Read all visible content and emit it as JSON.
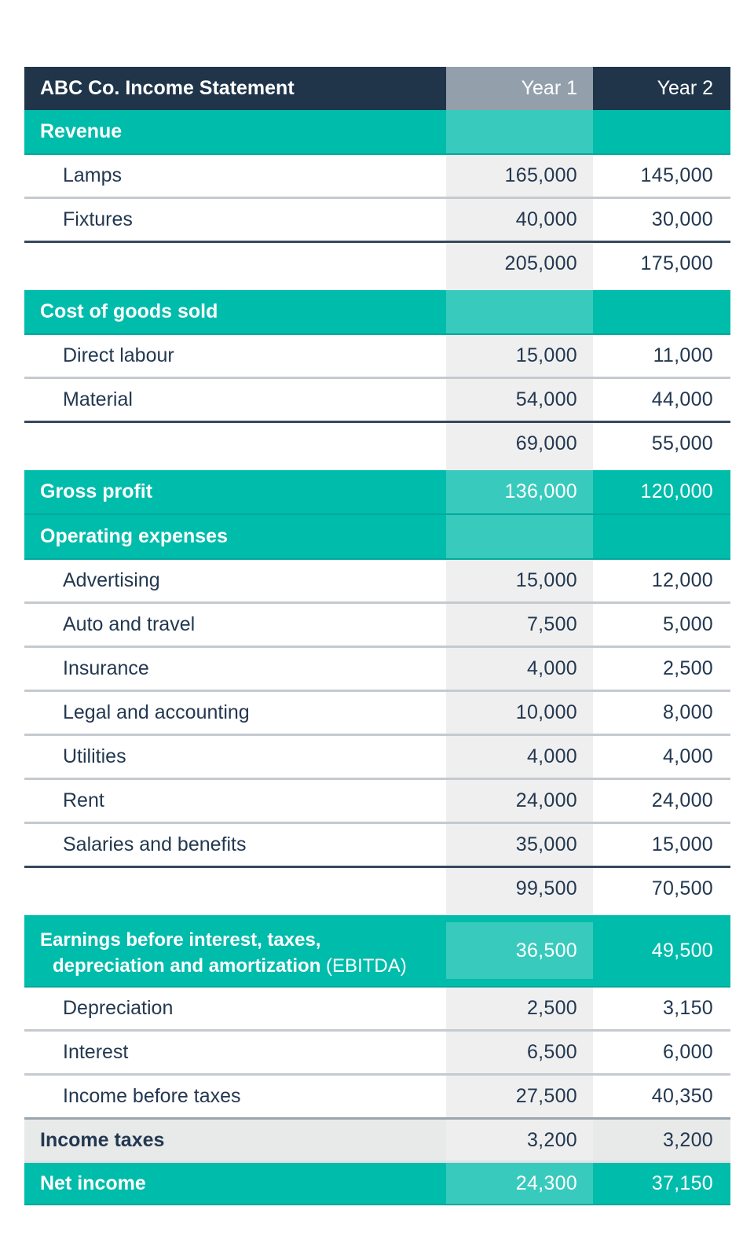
{
  "title": "ABC Co. Income Statement",
  "columns": {
    "year1": "Year 1",
    "year2": "Year 2"
  },
  "colors": {
    "navy": "#20354a",
    "teal": "#00bcab",
    "teal_light": "#38cbbd",
    "teal_edge": "#00a99b",
    "gray_header": "#93a0ac",
    "column_gray": "#efefef",
    "tax_row_bg": "#e8e9e9",
    "tax_col_bg": "#eeeeee",
    "text_dark": "#233850",
    "rule_thin": "#c5cad0",
    "rule_heavy": "#35495d",
    "rule_gray": "#9aa5ae",
    "rule_light": "#dfe2e4"
  },
  "rows": [
    {
      "type": "section",
      "label": "Revenue"
    },
    {
      "type": "detail",
      "label": "Lamps",
      "y1": "165,000",
      "y2": "145,000"
    },
    {
      "type": "detail",
      "label": "Fixtures",
      "y1": "40,000",
      "y2": "30,000",
      "rule": "thin"
    },
    {
      "type": "subtotal",
      "label": "",
      "y1": "205,000",
      "y2": "175,000",
      "rule": "heavy"
    },
    {
      "type": "gap"
    },
    {
      "type": "section",
      "label": "Cost of goods sold"
    },
    {
      "type": "detail",
      "label": "Direct labour",
      "y1": "15,000",
      "y2": "11,000"
    },
    {
      "type": "detail",
      "label": "Material",
      "y1": "54,000",
      "y2": "44,000",
      "rule": "thin"
    },
    {
      "type": "subtotal",
      "label": "",
      "y1": "69,000",
      "y2": "55,000",
      "rule": "heavy"
    },
    {
      "type": "gap"
    },
    {
      "type": "section_values",
      "label": "Gross profit",
      "y1": "136,000",
      "y2": "120,000"
    },
    {
      "type": "section",
      "label": "Operating expenses"
    },
    {
      "type": "detail",
      "label": "Advertising",
      "y1": "15,000",
      "y2": "12,000"
    },
    {
      "type": "detail",
      "label": "Auto and travel",
      "y1": "7,500",
      "y2": "5,000",
      "rule": "thin"
    },
    {
      "type": "detail",
      "label": "Insurance",
      "y1": "4,000",
      "y2": "2,500",
      "rule": "thin"
    },
    {
      "type": "detail",
      "label": "Legal and accounting",
      "y1": "10,000",
      "y2": "8,000",
      "rule": "thin"
    },
    {
      "type": "detail",
      "label": "Utilities",
      "y1": "4,000",
      "y2": "4,000",
      "rule": "thin"
    },
    {
      "type": "detail",
      "label": "Rent",
      "y1": "24,000",
      "y2": "24,000",
      "rule": "thin"
    },
    {
      "type": "detail",
      "label": "Salaries and benefits",
      "y1": "35,000",
      "y2": "15,000",
      "rule": "thin"
    },
    {
      "type": "subtotal",
      "label": "",
      "y1": "99,500",
      "y2": "70,500",
      "rule": "heavy"
    },
    {
      "type": "gap"
    },
    {
      "type": "section_2line",
      "label_line1": "Earnings before interest, taxes,",
      "label_line2": "depreciation and amortization",
      "label_line2_suffix": " (EBITDA)",
      "y1": "36,500",
      "y2": "49,500"
    },
    {
      "type": "detail",
      "label": "Depreciation",
      "y1": "2,500",
      "y2": "3,150"
    },
    {
      "type": "detail",
      "label": "Interest",
      "y1": "6,500",
      "y2": "6,000",
      "rule": "thin"
    },
    {
      "type": "detail",
      "label": "Income before taxes",
      "y1": "27,500",
      "y2": "40,350",
      "rule": "thin"
    },
    {
      "type": "tax",
      "label": "Income taxes",
      "y1": "3,200",
      "y2": "3,200",
      "rule": "gray"
    },
    {
      "type": "net",
      "label": "Net income",
      "y1": "24,300",
      "y2": "37,150",
      "rule": "light"
    }
  ]
}
